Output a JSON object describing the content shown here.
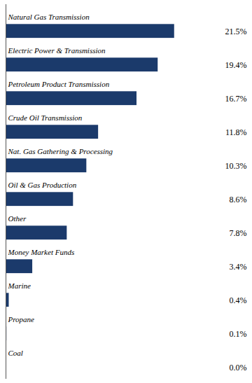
{
  "chart_data": {
    "type": "bar",
    "orientation": "horizontal",
    "categories": [
      "Natural Gas Transmission",
      "Electric Power & Transmission",
      "Petroleum Product Transmission",
      "Crude Oil Transmission",
      "Nat. Gas Gathering & Processing",
      "Oil & Gas Production",
      "Other",
      "Money Market Funds",
      "Marine",
      "Propane",
      "Coal"
    ],
    "values": [
      21.5,
      19.4,
      16.7,
      11.8,
      10.3,
      8.6,
      7.8,
      3.4,
      0.4,
      0.1,
      0.0
    ],
    "value_labels": [
      "21.5%",
      "19.4%",
      "16.7%",
      "11.8%",
      "10.3%",
      "8.6%",
      "7.8%",
      "3.4%",
      "0.4%",
      "0.1%",
      "0.0%"
    ],
    "data_labels": true,
    "color": "#1b3a6b",
    "xlim": [
      0,
      30.72
    ],
    "tick_labels": false
  }
}
